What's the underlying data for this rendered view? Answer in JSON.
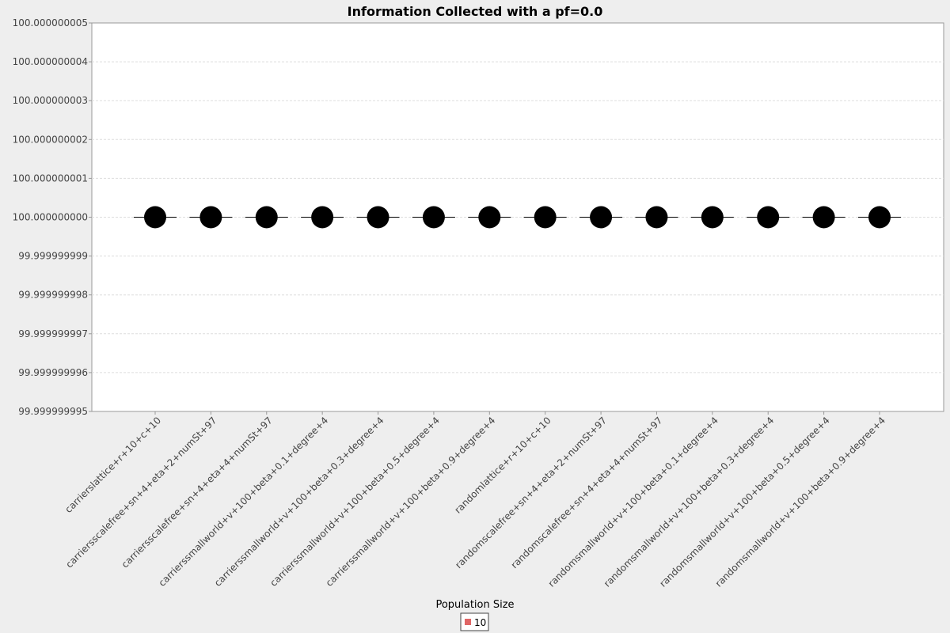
{
  "chart_data": {
    "type": "scatter",
    "title": "Information Collected with a pf=0.0",
    "xlabel": "",
    "ylabel": "",
    "ylim": [
      99.999999995,
      100.000000005
    ],
    "y_ticks": [
      "99.999999995",
      "99.999999996",
      "99.999999997",
      "99.999999998",
      "99.999999999",
      "100.000000000",
      "100.000000001",
      "100.000000002",
      "100.000000003",
      "100.000000004",
      "100.000000005"
    ],
    "categories": [
      "carrierslattice+r+10+c+10",
      "carriersscalefree+sn+4+eta+2+numSt+97",
      "carriersscalefree+sn+4+eta+4+numSt+97",
      "carrierssmallworld+v+100+beta+0.1+degree+4",
      "carrierssmallworld+v+100+beta+0.3+degree+4",
      "carrierssmallworld+v+100+beta+0.5+degree+4",
      "carrierssmallworld+v+100+beta+0.9+degree+4",
      "randomlattice+r+10+c+10",
      "randomscalefree+sn+4+eta+2+numSt+97",
      "randomscalefree+sn+4+eta+4+numSt+97",
      "randomsmallworld+v+100+beta+0.1+degree+4",
      "randomsmallworld+v+100+beta+0.3+degree+4",
      "randomsmallworld+v+100+beta+0.5+degree+4",
      "randomsmallworld+v+100+beta+0.9+degree+4"
    ],
    "series": [
      {
        "name": "10",
        "color": "#e06666",
        "values": [
          100.0,
          100.0,
          100.0,
          100.0,
          100.0,
          100.0,
          100.0,
          100.0,
          100.0,
          100.0,
          100.0,
          100.0,
          100.0,
          100.0
        ]
      }
    ],
    "grid": true,
    "legend": {
      "title": "Population Size",
      "position": "bottom"
    }
  }
}
